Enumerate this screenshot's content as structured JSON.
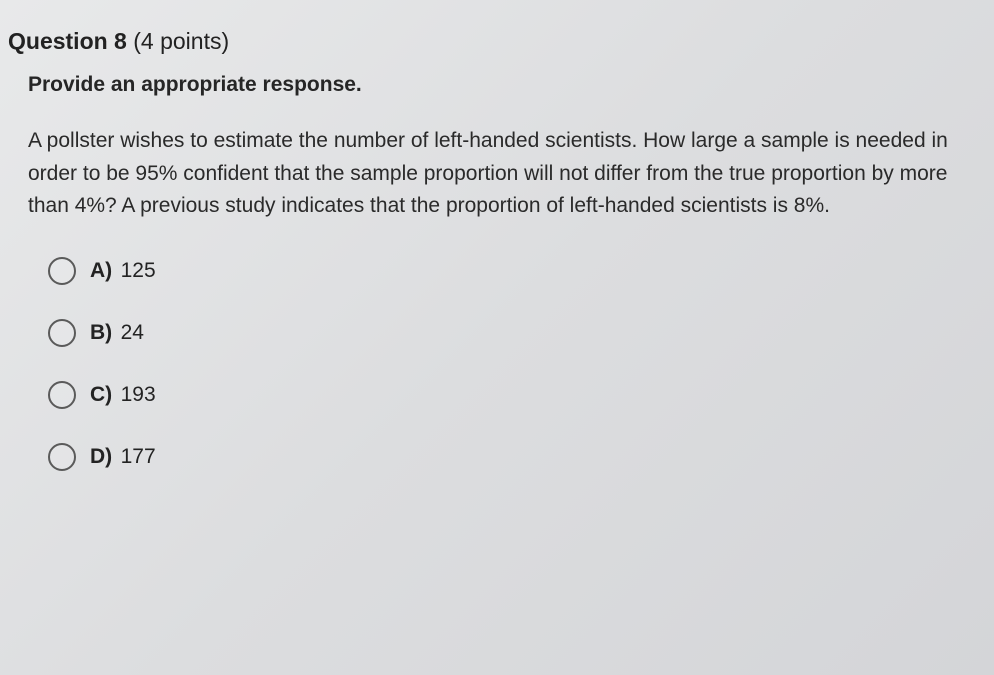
{
  "question": {
    "number_label": "Question 8",
    "points_label": "(4 points)",
    "instruction": "Provide an appropriate response.",
    "prompt": "A pollster wishes to estimate the number of left-handed scientists. How large a sample is needed in order to be 95% confident that the sample proportion will not differ from the true proportion by more than 4%? A previous study indicates that the proportion of left-handed scientists is 8%."
  },
  "options": [
    {
      "letter": "A)",
      "value": "125"
    },
    {
      "letter": "B)",
      "value": "24"
    },
    {
      "letter": "C)",
      "value": "193"
    },
    {
      "letter": "D)",
      "value": "177"
    }
  ]
}
